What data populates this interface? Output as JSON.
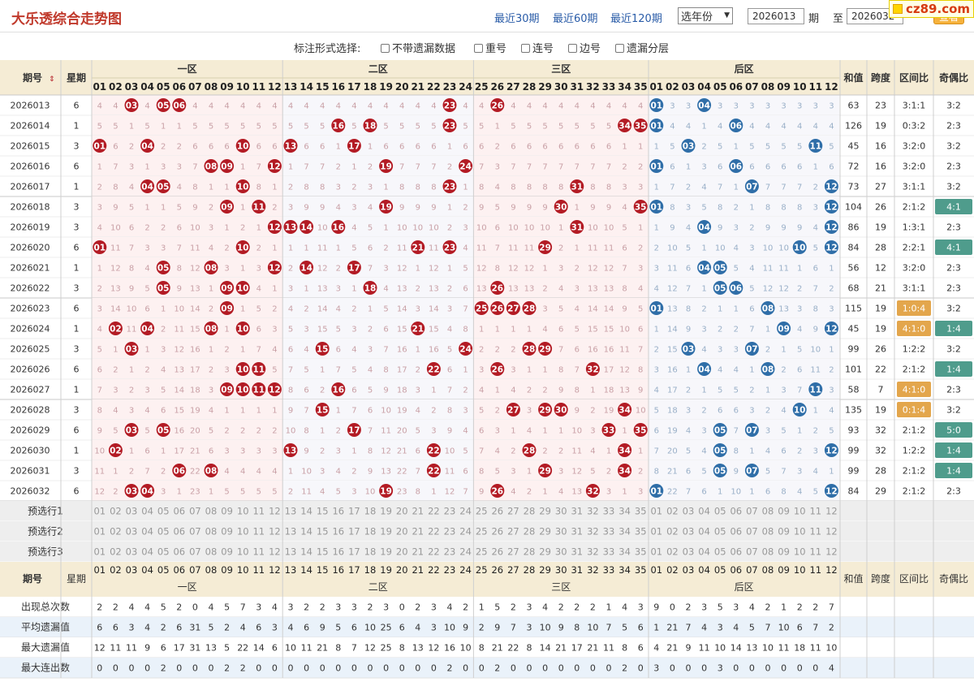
{
  "header": {
    "title": "大乐透综合走势图",
    "links": [
      "最近30期",
      "最近60期",
      "最近120期"
    ],
    "year_select": "选年份",
    "from_issue": "2026013",
    "label_qi": "期",
    "label_zhi": "至",
    "to_issue": "2026032",
    "query_label": "查看",
    "watermark": "cz89.com"
  },
  "options": {
    "title": "标注形式选择:",
    "items": [
      "不带遗漏数据",
      "重号",
      "连号",
      "边号",
      "遗漏分层"
    ]
  },
  "table": {
    "col_issue": "期号",
    "col_weekday": "星期",
    "zones": [
      "一区",
      "二区",
      "三区",
      "后区"
    ],
    "col_sum": "和值",
    "col_span": "跨度",
    "col_ratio": "区间比",
    "col_oddeven": "奇偶比",
    "front_numbers": [
      "01",
      "02",
      "03",
      "04",
      "05",
      "06",
      "07",
      "08",
      "09",
      "10",
      "11",
      "12",
      "13",
      "14",
      "15",
      "16",
      "17",
      "18",
      "19",
      "20",
      "21",
      "22",
      "23",
      "24",
      "25",
      "26",
      "27",
      "28",
      "29",
      "30",
      "31",
      "32",
      "33",
      "34",
      "35"
    ],
    "back_numbers": [
      "01",
      "02",
      "03",
      "04",
      "05",
      "06",
      "07",
      "08",
      "09",
      "10",
      "11",
      "12"
    ],
    "rows": [
      {
        "issue": "2026013",
        "wd": "6",
        "f": [
          3,
          5,
          6,
          23,
          26
        ],
        "b": [
          1,
          4
        ],
        "sum": "63",
        "span": "23",
        "ratio": "3:1:1",
        "oe": "3:2"
      },
      {
        "issue": "2026014",
        "wd": "1",
        "f": [
          16,
          18,
          23,
          34,
          35
        ],
        "b": [
          1,
          6
        ],
        "sum": "126",
        "span": "19",
        "ratio": "0:3:2",
        "oe": "2:3"
      },
      {
        "issue": "2026015",
        "wd": "3",
        "f": [
          1,
          4,
          10,
          13,
          17
        ],
        "b": [
          3,
          11
        ],
        "sum": "45",
        "span": "16",
        "ratio": "3:2:0",
        "oe": "3:2"
      },
      {
        "issue": "2026016",
        "wd": "6",
        "f": [
          8,
          9,
          12,
          19,
          24
        ],
        "b": [
          1,
          6
        ],
        "sum": "72",
        "span": "16",
        "ratio": "3:2:0",
        "oe": "2:3"
      },
      {
        "issue": "2026017",
        "wd": "1",
        "f": [
          4,
          5,
          10,
          23,
          31
        ],
        "b": [
          7,
          12
        ],
        "sum": "73",
        "span": "27",
        "ratio": "3:1:1",
        "oe": "3:2"
      },
      {
        "issue": "2026018",
        "wd": "3",
        "f": [
          9,
          11,
          19,
          30,
          35
        ],
        "b": [
          1,
          12
        ],
        "sum": "104",
        "span": "26",
        "ratio": "2:1:2",
        "oe": "4:1"
      },
      {
        "issue": "2026019",
        "wd": "3",
        "f": [
          12,
          13,
          14,
          16,
          31
        ],
        "b": [
          4,
          12
        ],
        "sum": "86",
        "span": "19",
        "ratio": "1:3:1",
        "oe": "2:3"
      },
      {
        "issue": "2026020",
        "wd": "6",
        "f": [
          1,
          10,
          21,
          23,
          29
        ],
        "b": [
          10,
          12
        ],
        "sum": "84",
        "span": "28",
        "ratio": "2:2:1",
        "oe": "4:1"
      },
      {
        "issue": "2026021",
        "wd": "1",
        "f": [
          5,
          8,
          12,
          14,
          17
        ],
        "b": [
          4,
          5
        ],
        "sum": "56",
        "span": "12",
        "ratio": "3:2:0",
        "oe": "2:3"
      },
      {
        "issue": "2026022",
        "wd": "3",
        "f": [
          5,
          9,
          10,
          18,
          26
        ],
        "b": [
          5,
          6
        ],
        "sum": "68",
        "span": "21",
        "ratio": "3:1:1",
        "oe": "2:3"
      },
      {
        "issue": "2026023",
        "wd": "6",
        "f": [
          9,
          25,
          26,
          27,
          28
        ],
        "b": [
          1,
          8
        ],
        "sum": "115",
        "span": "19",
        "ratio": "1:0:4",
        "oe": "3:2"
      },
      {
        "issue": "2026024",
        "wd": "1",
        "f": [
          2,
          4,
          8,
          10,
          21
        ],
        "b": [
          9,
          12
        ],
        "sum": "45",
        "span": "19",
        "ratio": "4:1:0",
        "oe": "1:4"
      },
      {
        "issue": "2026025",
        "wd": "3",
        "f": [
          3,
          15,
          24,
          28,
          29
        ],
        "b": [
          3,
          7
        ],
        "sum": "99",
        "span": "26",
        "ratio": "1:2:2",
        "oe": "3:2"
      },
      {
        "issue": "2026026",
        "wd": "6",
        "f": [
          10,
          11,
          22,
          26,
          32
        ],
        "b": [
          4,
          8
        ],
        "sum": "101",
        "span": "22",
        "ratio": "2:1:2",
        "oe": "1:4"
      },
      {
        "issue": "2026027",
        "wd": "1",
        "f": [
          9,
          10,
          11,
          12,
          16
        ],
        "b": [
          11
        ],
        "sum": "58",
        "span": "7",
        "ratio": "4:1:0",
        "oe": "2:3"
      },
      {
        "issue": "2026028",
        "wd": "3",
        "f": [
          15,
          27,
          29,
          30,
          34
        ],
        "b": [
          10
        ],
        "sum": "135",
        "span": "19",
        "ratio": "0:1:4",
        "oe": "3:2"
      },
      {
        "issue": "2026029",
        "wd": "6",
        "f": [
          3,
          5,
          17,
          33,
          35
        ],
        "b": [
          5,
          7
        ],
        "sum": "93",
        "span": "32",
        "ratio": "2:1:2",
        "oe": "5:0"
      },
      {
        "issue": "2026030",
        "wd": "1",
        "f": [
          2,
          13,
          22,
          28,
          34
        ],
        "b": [
          5,
          12
        ],
        "sum": "99",
        "span": "32",
        "ratio": "1:2:2",
        "oe": "1:4"
      },
      {
        "issue": "2026031",
        "wd": "3",
        "f": [
          6,
          8,
          22,
          29,
          34
        ],
        "b": [
          5,
          7
        ],
        "sum": "99",
        "span": "28",
        "ratio": "2:1:2",
        "oe": "1:4"
      },
      {
        "issue": "2026032",
        "wd": "6",
        "f": [
          3,
          4,
          19,
          26,
          32
        ],
        "b": [
          1,
          12
        ],
        "sum": "84",
        "span": "29",
        "ratio": "2:1:2",
        "oe": "2:3"
      }
    ],
    "pre_rows": [
      "预选行1",
      "预选行2",
      "预选行3"
    ],
    "stats": [
      {
        "label": "出现总次数",
        "front": [
          2,
          2,
          4,
          4,
          5,
          2,
          0,
          4,
          5,
          7,
          3,
          4,
          3,
          2,
          2,
          3,
          3,
          2,
          3,
          0,
          2,
          3,
          4,
          2,
          1,
          5,
          2,
          3,
          4,
          2,
          2,
          2,
          1,
          4,
          3
        ],
        "back": [
          9,
          0,
          2,
          3,
          5,
          3,
          4,
          2,
          1,
          2,
          2,
          7
        ]
      },
      {
        "label": "平均遗漏值",
        "front": [
          6,
          6,
          3,
          4,
          2,
          6,
          31,
          5,
          2,
          4,
          6,
          3,
          4,
          6,
          9,
          5,
          6,
          10,
          25,
          6,
          4,
          3,
          10,
          9,
          2,
          9,
          7,
          3,
          10,
          9,
          8,
          10,
          7,
          5,
          6
        ],
        "back": [
          1,
          21,
          7,
          4,
          3,
          4,
          5,
          7,
          10,
          6,
          7,
          2
        ]
      },
      {
        "label": "最大遗漏值",
        "front": [
          12,
          11,
          11,
          9,
          6,
          17,
          31,
          13,
          5,
          22,
          14,
          6,
          10,
          11,
          21,
          8,
          7,
          12,
          25,
          8,
          13,
          12,
          16,
          10,
          8,
          21,
          22,
          8,
          14,
          21,
          17,
          21,
          11,
          8,
          6
        ],
        "back": [
          4,
          21,
          9,
          11,
          10,
          14,
          13,
          10,
          11,
          18,
          11,
          10
        ]
      },
      {
        "label": "最大连出数",
        "front": [
          0,
          0,
          0,
          0,
          2,
          0,
          0,
          0,
          2,
          2,
          0,
          0,
          0,
          0,
          0,
          0,
          0,
          0,
          0,
          0,
          0,
          0,
          2,
          0,
          0,
          2,
          0,
          0,
          0,
          0,
          0,
          0,
          0,
          2,
          0
        ],
        "back": [
          3,
          0,
          0,
          0,
          3,
          0,
          0,
          0,
          0,
          0,
          0,
          4
        ]
      }
    ]
  },
  "colors": {
    "red_ball": "#b31b24",
    "blue_ball": "#2f6ea8",
    "header_bg": "#f5ecd5",
    "accent": "#c0392b",
    "ratio_badge": "#e3a64c",
    "oe_badge": "#4f9c8c"
  }
}
